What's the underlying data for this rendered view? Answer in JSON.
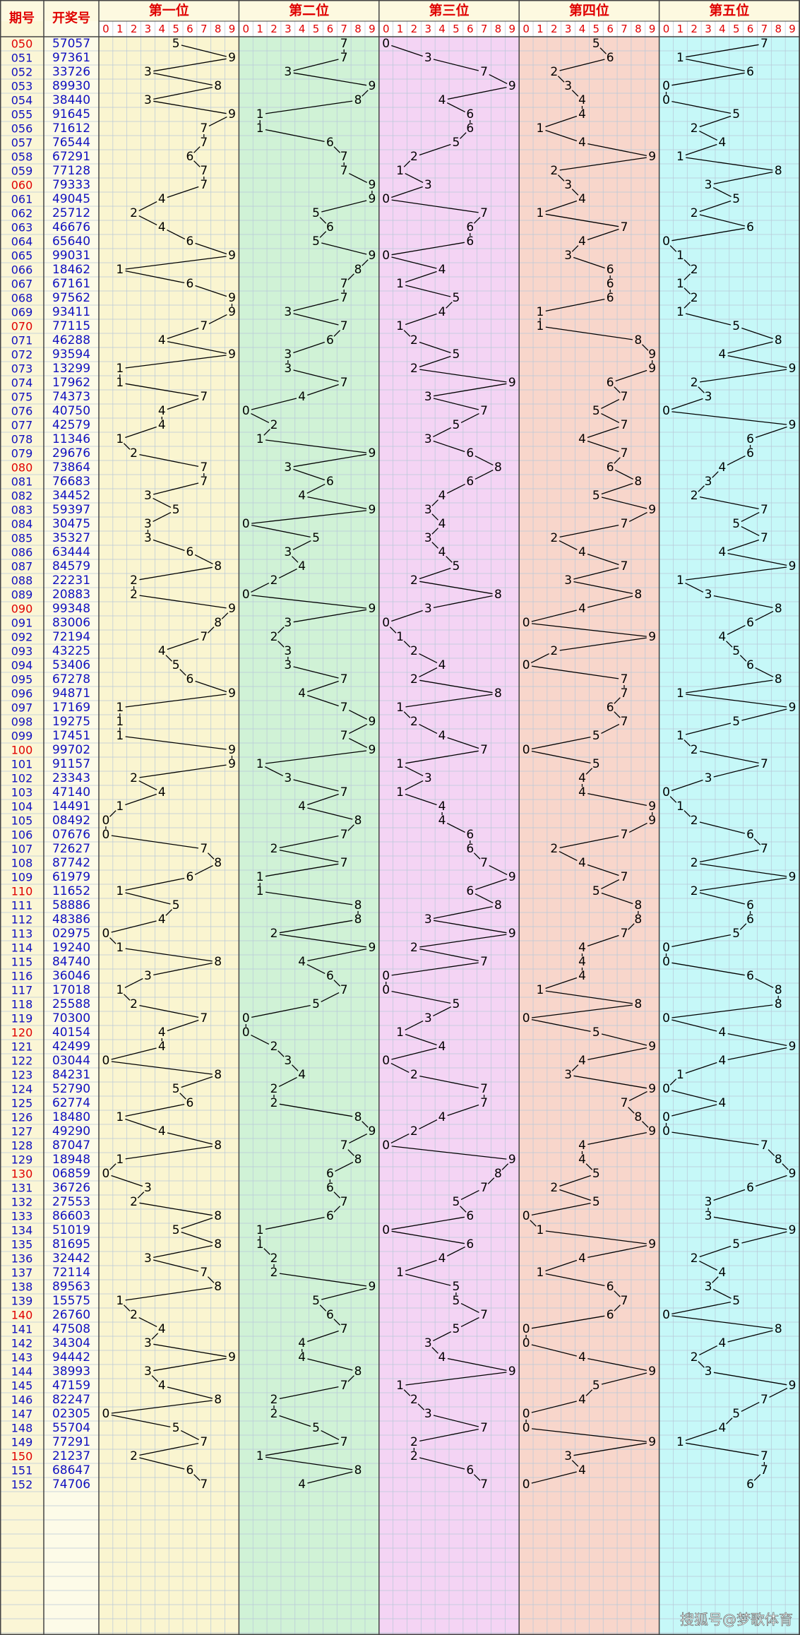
{
  "header": {
    "period": "期号",
    "number": "开奖号",
    "positions": [
      "第一位",
      "第二位",
      "第三位",
      "第四位",
      "第五位"
    ],
    "digit_labels": [
      "0",
      "1",
      "2",
      "3",
      "4",
      "5",
      "6",
      "7",
      "8",
      "9"
    ]
  },
  "table": {
    "rows": [
      {
        "period": "050",
        "number": "57057",
        "digits": [
          5,
          7,
          0,
          5,
          7
        ]
      },
      {
        "period": "051",
        "number": "97361",
        "digits": [
          9,
          7,
          3,
          6,
          1
        ]
      },
      {
        "period": "052",
        "number": "33726",
        "digits": [
          3,
          3,
          7,
          2,
          6
        ]
      },
      {
        "period": "053",
        "number": "89930",
        "digits": [
          8,
          9,
          9,
          3,
          0
        ]
      },
      {
        "period": "054",
        "number": "38440",
        "digits": [
          3,
          8,
          4,
          4,
          0
        ]
      },
      {
        "period": "055",
        "number": "91645",
        "digits": [
          9,
          1,
          6,
          4,
          5
        ]
      },
      {
        "period": "056",
        "number": "71612",
        "digits": [
          7,
          1,
          6,
          1,
          2
        ]
      },
      {
        "period": "057",
        "number": "76544",
        "digits": [
          7,
          6,
          5,
          4,
          4
        ]
      },
      {
        "period": "058",
        "number": "67291",
        "digits": [
          6,
          7,
          2,
          9,
          1
        ]
      },
      {
        "period": "059",
        "number": "77128",
        "digits": [
          7,
          7,
          1,
          2,
          8
        ]
      },
      {
        "period": "060",
        "number": "79333",
        "digits": [
          7,
          9,
          3,
          3,
          3
        ]
      },
      {
        "period": "061",
        "number": "49045",
        "digits": [
          4,
          9,
          0,
          4,
          5
        ]
      },
      {
        "period": "062",
        "number": "25712",
        "digits": [
          2,
          5,
          7,
          1,
          2
        ]
      },
      {
        "period": "063",
        "number": "46676",
        "digits": [
          4,
          6,
          6,
          7,
          6
        ]
      },
      {
        "period": "064",
        "number": "65640",
        "digits": [
          6,
          5,
          6,
          4,
          0
        ]
      },
      {
        "period": "065",
        "number": "99031",
        "digits": [
          9,
          9,
          0,
          3,
          1
        ]
      },
      {
        "period": "066",
        "number": "18462",
        "digits": [
          1,
          8,
          4,
          6,
          2
        ]
      },
      {
        "period": "067",
        "number": "67161",
        "digits": [
          6,
          7,
          1,
          6,
          1
        ]
      },
      {
        "period": "068",
        "number": "97562",
        "digits": [
          9,
          7,
          5,
          6,
          2
        ]
      },
      {
        "period": "069",
        "number": "93411",
        "digits": [
          9,
          3,
          4,
          1,
          1
        ]
      },
      {
        "period": "070",
        "number": "77115",
        "digits": [
          7,
          7,
          1,
          1,
          5
        ]
      },
      {
        "period": "071",
        "number": "46288",
        "digits": [
          4,
          6,
          2,
          8,
          8
        ]
      },
      {
        "period": "072",
        "number": "93594",
        "digits": [
          9,
          3,
          5,
          9,
          4
        ]
      },
      {
        "period": "073",
        "number": "13299",
        "digits": [
          1,
          3,
          2,
          9,
          9
        ]
      },
      {
        "period": "074",
        "number": "17962",
        "digits": [
          1,
          7,
          9,
          6,
          2
        ]
      },
      {
        "period": "075",
        "number": "74373",
        "digits": [
          7,
          4,
          3,
          7,
          3
        ]
      },
      {
        "period": "076",
        "number": "40750",
        "digits": [
          4,
          0,
          7,
          5,
          0
        ]
      },
      {
        "period": "077",
        "number": "42579",
        "digits": [
          4,
          2,
          5,
          7,
          9
        ]
      },
      {
        "period": "078",
        "number": "11346",
        "digits": [
          1,
          1,
          3,
          4,
          6
        ]
      },
      {
        "period": "079",
        "number": "29676",
        "digits": [
          2,
          9,
          6,
          7,
          6
        ]
      },
      {
        "period": "080",
        "number": "73864",
        "digits": [
          7,
          3,
          8,
          6,
          4
        ]
      },
      {
        "period": "081",
        "number": "76683",
        "digits": [
          7,
          6,
          6,
          8,
          3
        ]
      },
      {
        "period": "082",
        "number": "34452",
        "digits": [
          3,
          4,
          4,
          5,
          2
        ]
      },
      {
        "period": "083",
        "number": "59397",
        "digits": [
          5,
          9,
          3,
          9,
          7
        ]
      },
      {
        "period": "084",
        "number": "30475",
        "digits": [
          3,
          0,
          4,
          7,
          5
        ]
      },
      {
        "period": "085",
        "number": "35327",
        "digits": [
          3,
          5,
          3,
          2,
          7
        ]
      },
      {
        "period": "086",
        "number": "63444",
        "digits": [
          6,
          3,
          4,
          4,
          4
        ]
      },
      {
        "period": "087",
        "number": "84579",
        "digits": [
          8,
          4,
          5,
          7,
          9
        ]
      },
      {
        "period": "088",
        "number": "22231",
        "digits": [
          2,
          2,
          2,
          3,
          1
        ]
      },
      {
        "period": "089",
        "number": "20883",
        "digits": [
          2,
          0,
          8,
          8,
          3
        ]
      },
      {
        "period": "090",
        "number": "99348",
        "digits": [
          9,
          9,
          3,
          4,
          8
        ]
      },
      {
        "period": "091",
        "number": "83006",
        "digits": [
          8,
          3,
          0,
          0,
          6
        ]
      },
      {
        "period": "092",
        "number": "72194",
        "digits": [
          7,
          2,
          1,
          9,
          4
        ]
      },
      {
        "period": "093",
        "number": "43225",
        "digits": [
          4,
          3,
          2,
          2,
          5
        ]
      },
      {
        "period": "094",
        "number": "53406",
        "digits": [
          5,
          3,
          4,
          0,
          6
        ]
      },
      {
        "period": "095",
        "number": "67278",
        "digits": [
          6,
          7,
          2,
          7,
          8
        ]
      },
      {
        "period": "096",
        "number": "94871",
        "digits": [
          9,
          4,
          8,
          7,
          1
        ]
      },
      {
        "period": "097",
        "number": "17169",
        "digits": [
          1,
          7,
          1,
          6,
          9
        ]
      },
      {
        "period": "098",
        "number": "19275",
        "digits": [
          1,
          9,
          2,
          7,
          5
        ]
      },
      {
        "period": "099",
        "number": "17451",
        "digits": [
          1,
          7,
          4,
          5,
          1
        ]
      },
      {
        "period": "100",
        "number": "99702",
        "digits": [
          9,
          9,
          7,
          0,
          2
        ]
      },
      {
        "period": "101",
        "number": "91157",
        "digits": [
          9,
          1,
          1,
          5,
          7
        ]
      },
      {
        "period": "102",
        "number": "23343",
        "digits": [
          2,
          3,
          3,
          4,
          3
        ]
      },
      {
        "period": "103",
        "number": "47140",
        "digits": [
          4,
          7,
          1,
          4,
          0
        ]
      },
      {
        "period": "104",
        "number": "14491",
        "digits": [
          1,
          4,
          4,
          9,
          1
        ]
      },
      {
        "period": "105",
        "number": "08492",
        "digits": [
          0,
          8,
          4,
          9,
          2
        ]
      },
      {
        "period": "106",
        "number": "07676",
        "digits": [
          0,
          7,
          6,
          7,
          6
        ]
      },
      {
        "period": "107",
        "number": "72627",
        "digits": [
          7,
          2,
          6,
          2,
          7
        ]
      },
      {
        "period": "108",
        "number": "87742",
        "digits": [
          8,
          7,
          7,
          4,
          2
        ]
      },
      {
        "period": "109",
        "number": "61979",
        "digits": [
          6,
          1,
          9,
          7,
          9
        ]
      },
      {
        "period": "110",
        "number": "11652",
        "digits": [
          1,
          1,
          6,
          5,
          2
        ]
      },
      {
        "period": "111",
        "number": "58886",
        "digits": [
          5,
          8,
          8,
          8,
          6
        ]
      },
      {
        "period": "112",
        "number": "48386",
        "digits": [
          4,
          8,
          3,
          8,
          6
        ]
      },
      {
        "period": "113",
        "number": "02975",
        "digits": [
          0,
          2,
          9,
          7,
          5
        ]
      },
      {
        "period": "114",
        "number": "19240",
        "digits": [
          1,
          9,
          2,
          4,
          0
        ]
      },
      {
        "period": "115",
        "number": "84740",
        "digits": [
          8,
          4,
          7,
          4,
          0
        ]
      },
      {
        "period": "116",
        "number": "36046",
        "digits": [
          3,
          6,
          0,
          4,
          6
        ]
      },
      {
        "period": "117",
        "number": "17018",
        "digits": [
          1,
          7,
          0,
          1,
          8
        ]
      },
      {
        "period": "118",
        "number": "25588",
        "digits": [
          2,
          5,
          5,
          8,
          8
        ]
      },
      {
        "period": "119",
        "number": "70300",
        "digits": [
          7,
          0,
          3,
          0,
          0
        ]
      },
      {
        "period": "120",
        "number": "40154",
        "digits": [
          4,
          0,
          1,
          5,
          4
        ]
      },
      {
        "period": "121",
        "number": "42499",
        "digits": [
          4,
          2,
          4,
          9,
          9
        ]
      },
      {
        "period": "122",
        "number": "03044",
        "digits": [
          0,
          3,
          0,
          4,
          4
        ]
      },
      {
        "period": "123",
        "number": "84231",
        "digits": [
          8,
          4,
          2,
          3,
          1
        ]
      },
      {
        "period": "124",
        "number": "52790",
        "digits": [
          5,
          2,
          7,
          9,
          0
        ]
      },
      {
        "period": "125",
        "number": "62774",
        "digits": [
          6,
          2,
          7,
          7,
          4
        ]
      },
      {
        "period": "126",
        "number": "18480",
        "digits": [
          1,
          8,
          4,
          8,
          0
        ]
      },
      {
        "period": "127",
        "number": "49290",
        "digits": [
          4,
          9,
          2,
          9,
          0
        ]
      },
      {
        "period": "128",
        "number": "87047",
        "digits": [
          8,
          7,
          0,
          4,
          7
        ]
      },
      {
        "period": "129",
        "number": "18948",
        "digits": [
          1,
          8,
          9,
          4,
          8
        ]
      },
      {
        "period": "130",
        "number": "06859",
        "digits": [
          0,
          6,
          8,
          5,
          9
        ]
      },
      {
        "period": "131",
        "number": "36726",
        "digits": [
          3,
          6,
          7,
          2,
          6
        ]
      },
      {
        "period": "132",
        "number": "27553",
        "digits": [
          2,
          7,
          5,
          5,
          3
        ]
      },
      {
        "period": "133",
        "number": "86603",
        "digits": [
          8,
          6,
          6,
          0,
          3
        ]
      },
      {
        "period": "134",
        "number": "51019",
        "digits": [
          5,
          1,
          0,
          1,
          9
        ]
      },
      {
        "period": "135",
        "number": "81695",
        "digits": [
          8,
          1,
          6,
          9,
          5
        ]
      },
      {
        "period": "136",
        "number": "32442",
        "digits": [
          3,
          2,
          4,
          4,
          2
        ]
      },
      {
        "period": "137",
        "number": "72114",
        "digits": [
          7,
          2,
          1,
          1,
          4
        ]
      },
      {
        "period": "138",
        "number": "89563",
        "digits": [
          8,
          9,
          5,
          6,
          3
        ]
      },
      {
        "period": "139",
        "number": "15575",
        "digits": [
          1,
          5,
          5,
          7,
          5
        ]
      },
      {
        "period": "140",
        "number": "26760",
        "digits": [
          2,
          6,
          7,
          6,
          0
        ]
      },
      {
        "period": "141",
        "number": "47508",
        "digits": [
          4,
          7,
          5,
          0,
          8
        ]
      },
      {
        "period": "142",
        "number": "34304",
        "digits": [
          3,
          4,
          3,
          0,
          4
        ]
      },
      {
        "period": "143",
        "number": "94442",
        "digits": [
          9,
          4,
          4,
          4,
          2
        ]
      },
      {
        "period": "144",
        "number": "38993",
        "digits": [
          3,
          8,
          9,
          9,
          3
        ]
      },
      {
        "period": "145",
        "number": "47159",
        "digits": [
          4,
          7,
          1,
          5,
          9
        ]
      },
      {
        "period": "146",
        "number": "82247",
        "digits": [
          8,
          2,
          2,
          4,
          7
        ]
      },
      {
        "period": "147",
        "number": "02305",
        "digits": [
          0,
          2,
          3,
          0,
          5
        ]
      },
      {
        "period": "148",
        "number": "55704",
        "digits": [
          5,
          5,
          7,
          0,
          4
        ]
      },
      {
        "period": "149",
        "number": "77291",
        "digits": [
          7,
          7,
          2,
          9,
          1
        ]
      },
      {
        "period": "150",
        "number": "21237",
        "digits": [
          2,
          1,
          2,
          3,
          7
        ]
      },
      {
        "period": "151",
        "number": "68647",
        "digits": [
          6,
          8,
          6,
          4,
          7
        ]
      },
      {
        "period": "152",
        "number": "74706",
        "digits": [
          7,
          4,
          7,
          0,
          6
        ]
      }
    ]
  },
  "watermark": "搜狐号@梦歌体育"
}
